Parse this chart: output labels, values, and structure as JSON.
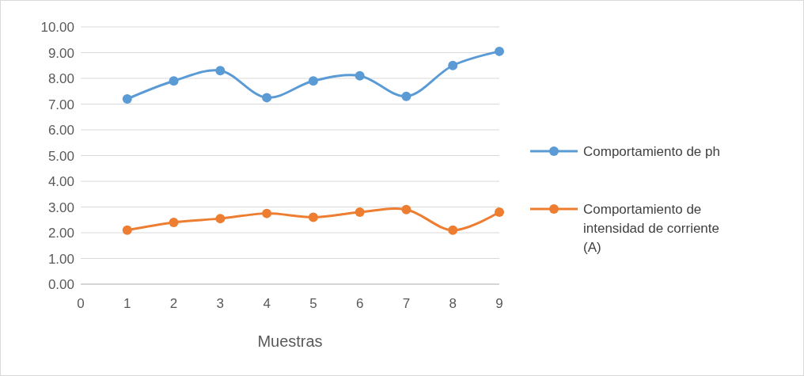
{
  "chart_data": {
    "type": "line",
    "xlabel": "Muestras",
    "x": [
      1,
      2,
      3,
      4,
      5,
      6,
      7,
      8,
      9
    ],
    "xlim": [
      0,
      9
    ],
    "xticks": [
      0,
      1,
      2,
      3,
      4,
      5,
      6,
      7,
      8,
      9
    ],
    "ylim": [
      0,
      10
    ],
    "yticks": [
      {
        "value": 0,
        "label": "0.00"
      },
      {
        "value": 1,
        "label": "1.00"
      },
      {
        "value": 2,
        "label": "2.00"
      },
      {
        "value": 3,
        "label": "3.00"
      },
      {
        "value": 4,
        "label": "4.00"
      },
      {
        "value": 5,
        "label": "5.00"
      },
      {
        "value": 6,
        "label": "6.00"
      },
      {
        "value": 7,
        "label": "7.00"
      },
      {
        "value": 8,
        "label": "8.00"
      },
      {
        "value": 9,
        "label": "9.00"
      },
      {
        "value": 10,
        "label": "10.00"
      }
    ],
    "grid": "y",
    "legend": "right",
    "marker": "circle",
    "line_style": "solid",
    "series": [
      {
        "name": "Comportamiento de ph",
        "color": "#5b9bd5",
        "values": [
          7.2,
          7.9,
          8.3,
          7.25,
          7.9,
          8.1,
          7.3,
          8.5,
          9.05
        ]
      },
      {
        "name": "Comportamiento de intensidad de corriente (A)",
        "color": "#ed7d31",
        "values": [
          2.1,
          2.4,
          2.55,
          2.75,
          2.6,
          2.8,
          2.9,
          2.1,
          2.8
        ]
      }
    ]
  }
}
